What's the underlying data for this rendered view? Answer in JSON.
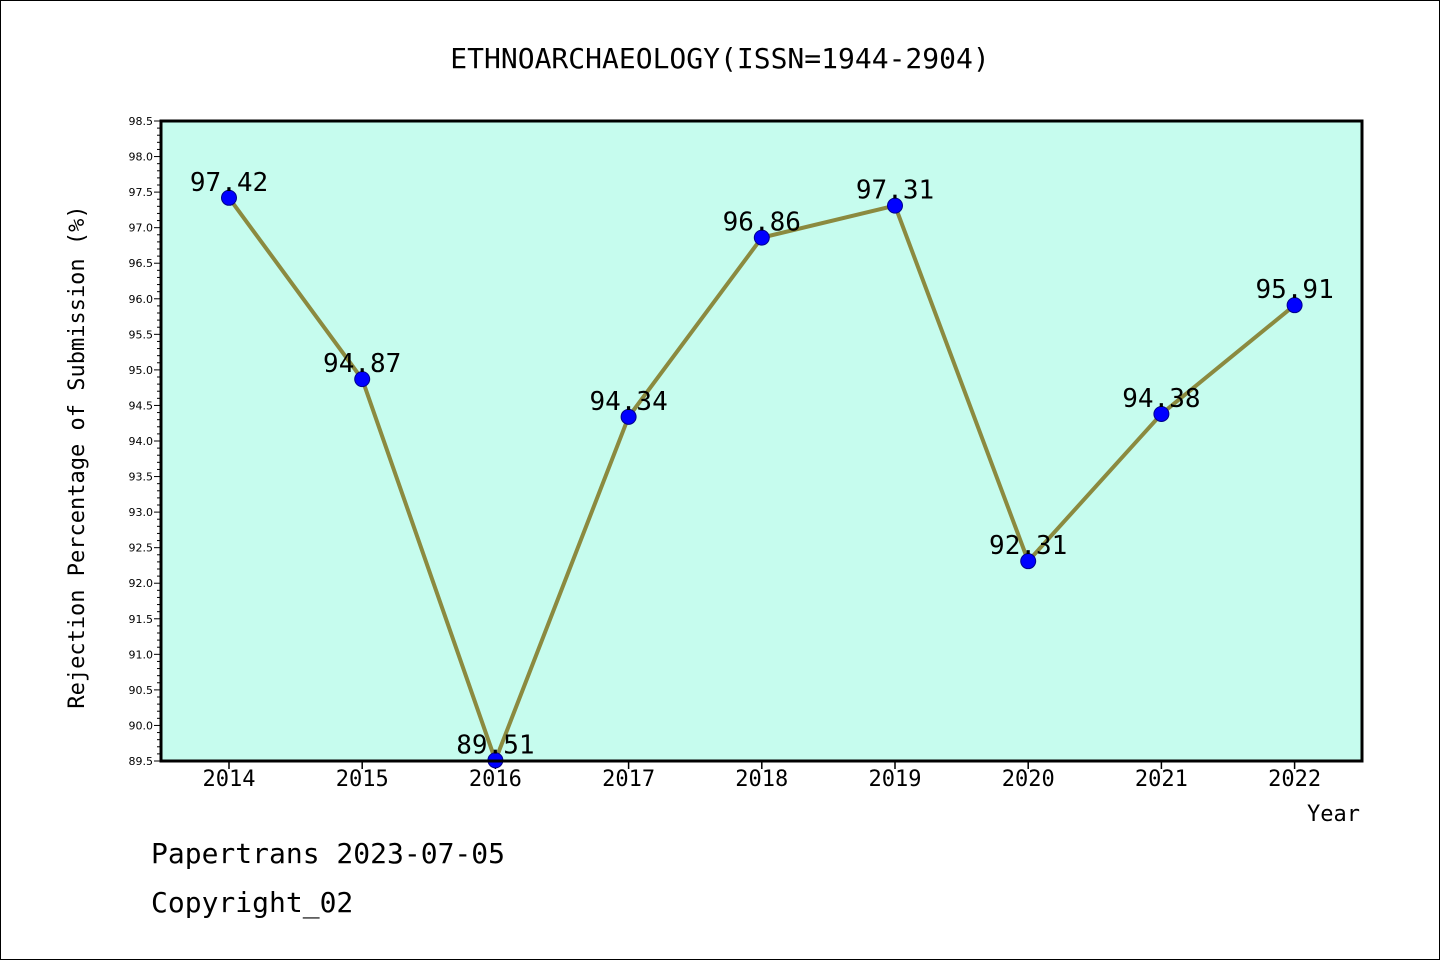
{
  "chart_data": {
    "type": "line",
    "title": "ETHNOARCHAEOLOGY(ISSN=1944-2904)",
    "xlabel": "Year",
    "ylabel": "Rejection Percentage of Submission (%)",
    "categories": [
      "2014",
      "2015",
      "2016",
      "2017",
      "2018",
      "2019",
      "2020",
      "2021",
      "2022"
    ],
    "series": [
      {
        "values": [
          97.42,
          94.87,
          89.51,
          94.34,
          96.86,
          97.31,
          92.31,
          94.38,
          95.91
        ],
        "labels": [
          "97.42",
          "94.87",
          "89.51",
          "94.34",
          "96.86",
          "97.31",
          "92.31",
          "94.38",
          "95.91"
        ]
      }
    ],
    "ylim": [
      89.5,
      98.5
    ],
    "yticks": [
      "89.5",
      "90.0",
      "90.5",
      "91.0",
      "91.5",
      "92.0",
      "92.5",
      "93.0",
      "93.5",
      "94.0",
      "94.5",
      "95.0",
      "95.5",
      "96.0",
      "96.5",
      "97.0",
      "97.5",
      "98.0",
      "98.5"
    ],
    "yminor_step": 0.1,
    "grid": false,
    "colors": {
      "plot_background": "#c6fcee",
      "line": "#8b8a3f",
      "marker_fill": "#0000ff",
      "marker_edge": "#00008b",
      "frame": "#000000"
    }
  },
  "footer": {
    "date_line": "Papertrans 2023-07-05",
    "copyright_line": "Copyright_02"
  }
}
